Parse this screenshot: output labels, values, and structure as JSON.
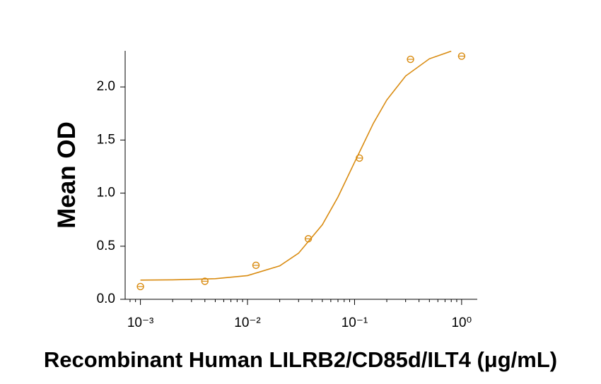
{
  "chart_data": {
    "type": "scatter",
    "x_label": "Recombinant Human LILRB2/CD85d/ILT4 (μg/mL)",
    "y_label": "Mean OD",
    "xscale": "log",
    "xlim": [
      0.00072,
      1.4
    ],
    "ylim": [
      0,
      2.34
    ],
    "xticks": [
      {
        "value": 0.001,
        "label": "10⁻³"
      },
      {
        "value": 0.01,
        "label": "10⁻²"
      },
      {
        "value": 0.1,
        "label": "10⁻¹"
      },
      {
        "value": 1,
        "label": "10⁰"
      }
    ],
    "xminorticks": [
      0.0008,
      0.0009,
      0.002,
      0.003,
      0.004,
      0.005,
      0.006,
      0.007,
      0.008,
      0.009,
      0.02,
      0.03,
      0.04,
      0.05,
      0.06,
      0.07,
      0.08,
      0.09,
      0.2,
      0.3,
      0.4,
      0.5,
      0.6,
      0.7,
      0.8,
      0.9
    ],
    "yticks": [
      {
        "value": 0,
        "label": "0.0"
      },
      {
        "value": 0.5,
        "label": "0.5"
      },
      {
        "value": 1,
        "label": "1.0"
      },
      {
        "value": 1.5,
        "label": "1.5"
      },
      {
        "value": 2,
        "label": "2.0"
      }
    ],
    "color": "#d98b10",
    "points": {
      "x": [
        0.001,
        0.004,
        0.012,
        0.037,
        0.111,
        0.333,
        1.0
      ],
      "y": [
        0.12,
        0.17,
        0.32,
        0.57,
        1.33,
        2.26,
        2.29
      ]
    },
    "fit": {
      "x": [
        0.001,
        0.002,
        0.005,
        0.01,
        0.02,
        0.03,
        0.05,
        0.07,
        0.1,
        0.15,
        0.2,
        0.3,
        0.5,
        0.8
      ],
      "y": [
        0.181,
        0.183,
        0.194,
        0.223,
        0.315,
        0.434,
        0.702,
        0.963,
        1.29,
        1.658,
        1.877,
        2.103,
        2.265,
        2.337
      ]
    }
  }
}
